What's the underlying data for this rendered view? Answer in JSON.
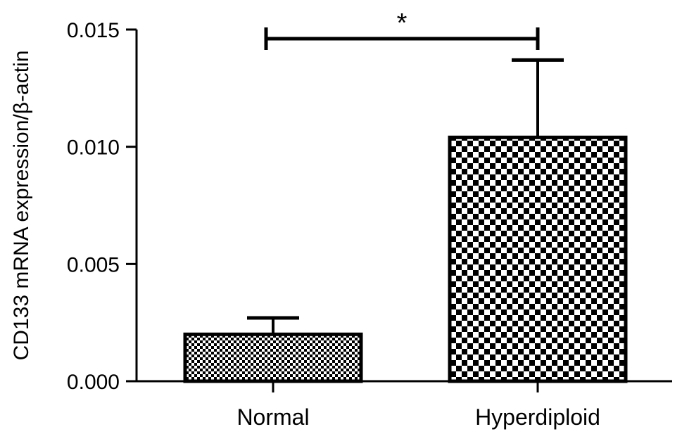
{
  "chart_data": {
    "type": "bar",
    "title": "",
    "xlabel": "",
    "ylabel": "CD133 mRNA expression/β-actin",
    "ylim": [
      0,
      0.015
    ],
    "yticks": [
      0.0,
      0.005,
      0.01,
      0.015
    ],
    "ytick_labels": [
      "0.000",
      "0.005",
      "0.010",
      "0.015"
    ],
    "categories": [
      "Normal",
      "Hyperdiploid"
    ],
    "values": [
      0.002,
      0.0104
    ],
    "errors": [
      0.0007,
      0.0033
    ],
    "bar_fills": [
      "fine-checker",
      "coarse-checker"
    ],
    "grid": false,
    "legend": "none",
    "significance": {
      "label": "*",
      "between": [
        "Normal",
        "Hyperdiploid"
      ],
      "y": 0.015
    },
    "colors": {
      "ink": "#000000",
      "background": "#ffffff"
    }
  }
}
